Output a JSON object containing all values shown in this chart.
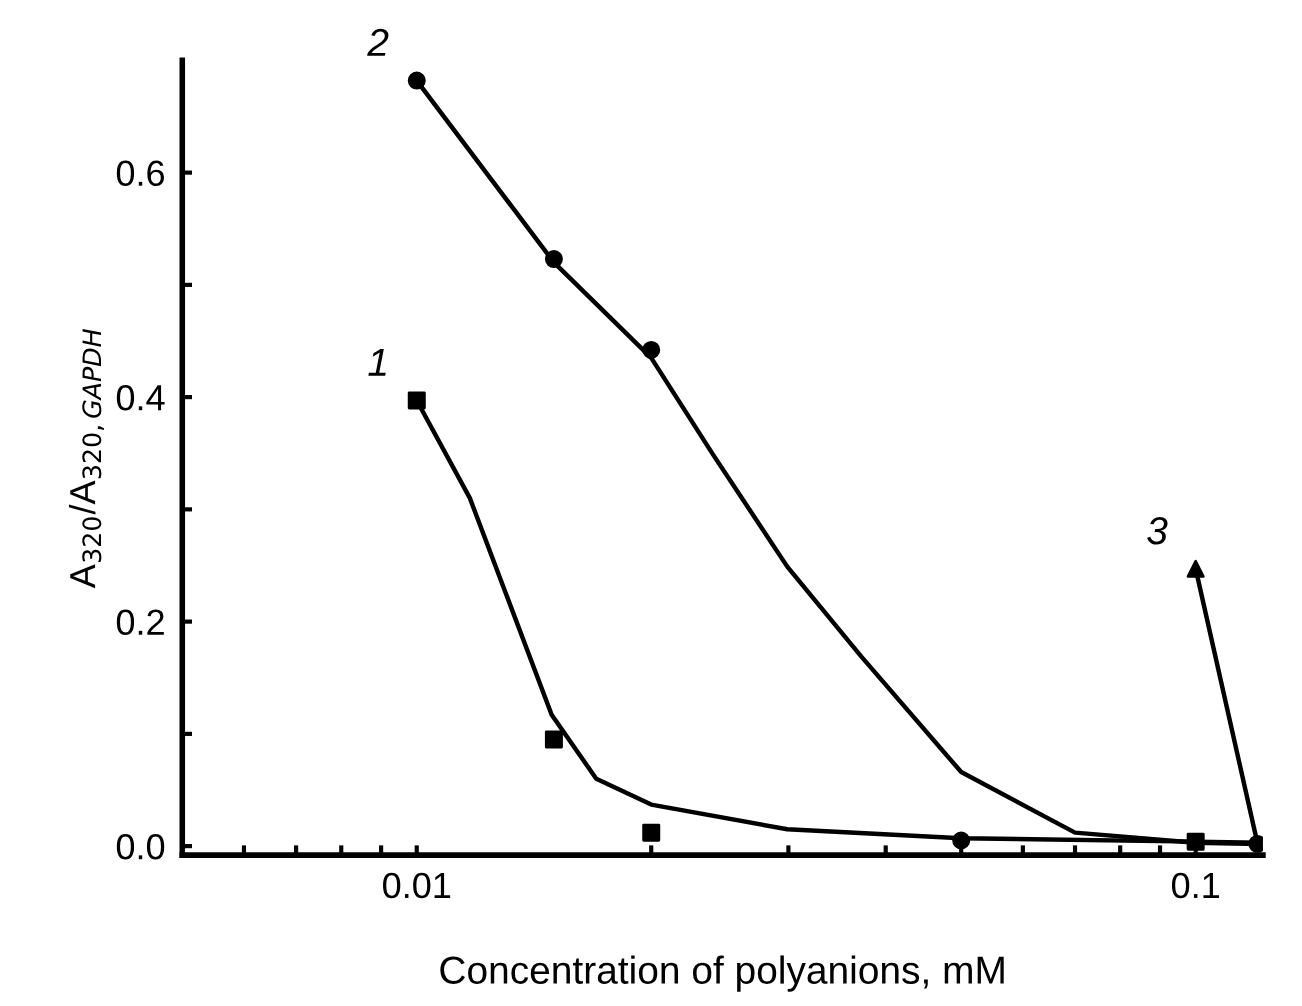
{
  "chart_data": {
    "type": "scatter",
    "xlabel": "Concentration of polyanions, mM",
    "ylabel": "A$_{320}$/A$_{320,GAPDH}$",
    "log": "x",
    "grid": false,
    "legend": false,
    "line_style": "solid",
    "xlim": [
      0.005,
      0.122
    ],
    "ylim": [
      -0.008,
      0.7
    ],
    "xticks": [
      {
        "value": 0.006,
        "label": null
      },
      {
        "value": 0.007,
        "label": null
      },
      {
        "value": 0.008,
        "label": null
      },
      {
        "value": 0.009,
        "label": null
      },
      0.01,
      {
        "value": 0.02,
        "label": null
      },
      {
        "value": 0.03,
        "label": null
      },
      {
        "value": 0.04,
        "label": null
      },
      {
        "value": 0.05,
        "label": null
      },
      {
        "value": 0.06,
        "label": null
      },
      {
        "value": 0.07,
        "label": null
      },
      {
        "value": 0.08,
        "label": null
      },
      {
        "value": 0.09,
        "label": null
      },
      0.1
    ],
    "yticks": [
      {
        "value": 0.0,
        "label": "0.0"
      },
      {
        "value": 0.1,
        "label": null
      },
      {
        "value": 0.2,
        "label": "0.2"
      },
      {
        "value": 0.3,
        "label": null
      },
      {
        "value": 0.4,
        "label": "0.4"
      },
      {
        "value": 0.5,
        "label": null
      },
      {
        "value": 0.6,
        "label": "0.6"
      }
    ],
    "series": [
      {
        "type": "line",
        "color": "#000000",
        "marker": "none",
        "x": [
          0.01,
          0.0117,
          0.0149,
          0.017,
          0.02,
          0.0299,
          0.05,
          0.1,
          0.12
        ],
        "values": [
          0.397,
          0.31,
          0.117,
          0.06,
          0.037,
          0.015,
          0.007,
          0.004,
          0.003
        ]
      },
      {
        "type": "line",
        "color": "#000000",
        "marker": "none",
        "x": [
          0.01,
          0.015,
          0.02,
          0.024,
          0.0299,
          0.0372,
          0.05,
          0.07,
          0.1,
          0.12
        ],
        "values": [
          0.682,
          0.52,
          0.435,
          0.349,
          0.249,
          0.169,
          0.066,
          0.012,
          0.003,
          0.002
        ]
      },
      {
        "type": "line",
        "color": "#000000",
        "marker": "none",
        "x": [
          0.1,
          0.12
        ],
        "values": [
          0.247,
          0.003
        ]
      },
      {
        "name": "1",
        "color": "#000000",
        "marker": "square",
        "x": [
          0.01,
          0.015,
          0.02,
          0.1
        ],
        "values": [
          0.397,
          0.095,
          0.012,
          0.004
        ]
      },
      {
        "name": "2",
        "color": "#000000",
        "marker": "circle",
        "x": [
          0.01,
          0.015,
          0.02,
          0.05,
          0.12
        ],
        "values": [
          0.682,
          0.523,
          0.442,
          0.005,
          0.002
        ]
      },
      {
        "name": "3",
        "color": "#000000",
        "marker": "triangle",
        "x": [
          0.1
        ],
        "values": [
          0.247
        ]
      }
    ]
  }
}
